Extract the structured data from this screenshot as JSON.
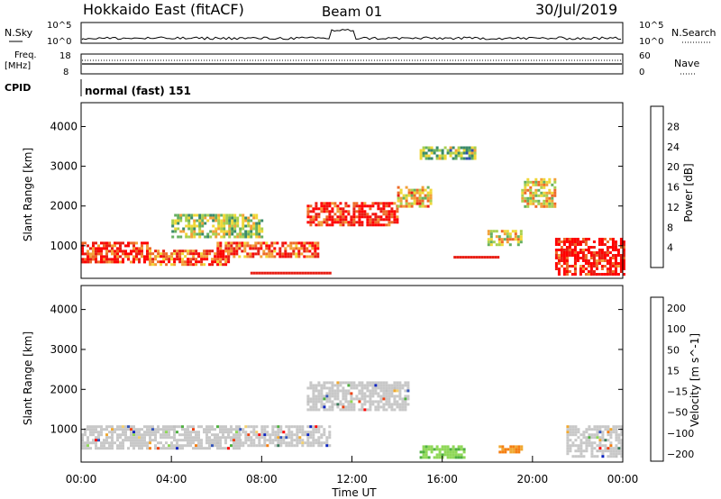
{
  "header": {
    "radar": "Hokkaido East (fitACF)",
    "beam": "Beam 01",
    "date": "30/Jul/2019"
  },
  "colors": {
    "power": [
      "#0a22e8",
      "#2f4fb0",
      "#3a8a6a",
      "#66b060",
      "#a8d050",
      "#f0d838",
      "#f2a038",
      "#ee6a28",
      "#e81e14",
      "#ff0000"
    ],
    "velocity": [
      "#ff0000",
      "#ee4010",
      "#f57e10",
      "#f0a830",
      "#f2d070",
      "#c8c8c8",
      "#c0c0c0",
      "#8fd858",
      "#4fb040",
      "#3a7a5a",
      "#3454b8",
      "#0a22c0"
    ],
    "line": "#000000"
  },
  "top_panels": {
    "nsky": {
      "label": "N.Sky",
      "left_ticks": [
        "10^5",
        "10^0"
      ],
      "right_label": "N.Search",
      "right_ticks": [
        "10^5",
        "10^0"
      ]
    },
    "freq": {
      "label_line1": "Freq.",
      "label_line2": "[MHz]",
      "left_ticks": [
        "18",
        "8"
      ],
      "right_label": "Nave",
      "right_ticks": [
        "60",
        "0"
      ]
    },
    "cpid": {
      "label": "CPID",
      "text": "normal (fast) 151"
    }
  },
  "chart_data": [
    {
      "type": "heatmap",
      "name": "power",
      "ylabel": "Slant Range [km]",
      "yticks": [
        1000,
        2000,
        3000,
        4000
      ],
      "ylim": [
        180,
        4600
      ],
      "xlim_hours": [
        0,
        24
      ],
      "colorbar": {
        "label": "Power [dB]",
        "ticks": [
          4,
          8,
          12,
          16,
          20,
          24,
          28
        ],
        "range": [
          0,
          32
        ]
      },
      "bands": [
        {
          "x0": 0.0,
          "x1": 3.0,
          "y0": 600,
          "y1": 1100,
          "intensity": 0.85
        },
        {
          "x0": 3.0,
          "x1": 6.5,
          "y0": 500,
          "y1": 900,
          "intensity": 0.75
        },
        {
          "x0": 6.0,
          "x1": 10.5,
          "y0": 700,
          "y1": 1100,
          "intensity": 0.8
        },
        {
          "x0": 10.0,
          "x1": 14.0,
          "y0": 1500,
          "y1": 2100,
          "intensity": 0.88
        },
        {
          "x0": 14.0,
          "x1": 15.5,
          "y0": 2000,
          "y1": 2500,
          "intensity": 0.6
        },
        {
          "x0": 18.0,
          "x1": 19.5,
          "y0": 1000,
          "y1": 1400,
          "intensity": 0.55
        },
        {
          "x0": 21.0,
          "x1": 24.0,
          "y0": 300,
          "y1": 1200,
          "intensity": 0.9
        },
        {
          "x0": 4.0,
          "x1": 8.0,
          "y0": 1200,
          "y1": 1800,
          "intensity": 0.45
        },
        {
          "x0": 15.0,
          "x1": 17.5,
          "y0": 3200,
          "y1": 3500,
          "intensity": 0.4
        },
        {
          "x0": 19.5,
          "x1": 21.0,
          "y0": 2000,
          "y1": 2700,
          "intensity": 0.55
        }
      ],
      "ground_echo_rows": [
        {
          "x0": 7.5,
          "x1": 11.0,
          "y": 300,
          "intensity": 0.9
        },
        {
          "x0": 16.5,
          "x1": 18.5,
          "y": 700,
          "intensity": 0.7
        }
      ]
    },
    {
      "type": "heatmap",
      "name": "velocity",
      "xlabel": "Time UT",
      "ylabel": "Slant Range [km]",
      "yticks": [
        1000,
        2000,
        3000,
        4000
      ],
      "ylim": [
        180,
        4600
      ],
      "xlim_hours": [
        0,
        24
      ],
      "xticks": [
        "00:00",
        "04:00",
        "08:00",
        "12:00",
        "16:00",
        "20:00",
        "00:00"
      ],
      "colorbar": {
        "label": "Velocity [m s^-1]",
        "ticks": [
          "200",
          "100",
          "50",
          "15",
          "−15",
          "−50",
          "−100",
          "−200"
        ]
      },
      "bands": [
        {
          "x0": 0.0,
          "x1": 7.0,
          "y0": 500,
          "y1": 1100,
          "class": "gray"
        },
        {
          "x0": 7.0,
          "x1": 11.0,
          "y0": 600,
          "y1": 1100,
          "class": "gray"
        },
        {
          "x0": 10.0,
          "x1": 14.5,
          "y0": 1500,
          "y1": 2200,
          "class": "gray"
        },
        {
          "x0": 21.5,
          "x1": 24.0,
          "y0": 300,
          "y1": 1100,
          "class": "gray"
        },
        {
          "x0": 15.0,
          "x1": 17.0,
          "y0": 300,
          "y1": 600,
          "class": "green"
        },
        {
          "x0": 18.5,
          "x1": 19.5,
          "y0": 400,
          "y1": 600,
          "class": "orange"
        }
      ]
    }
  ]
}
